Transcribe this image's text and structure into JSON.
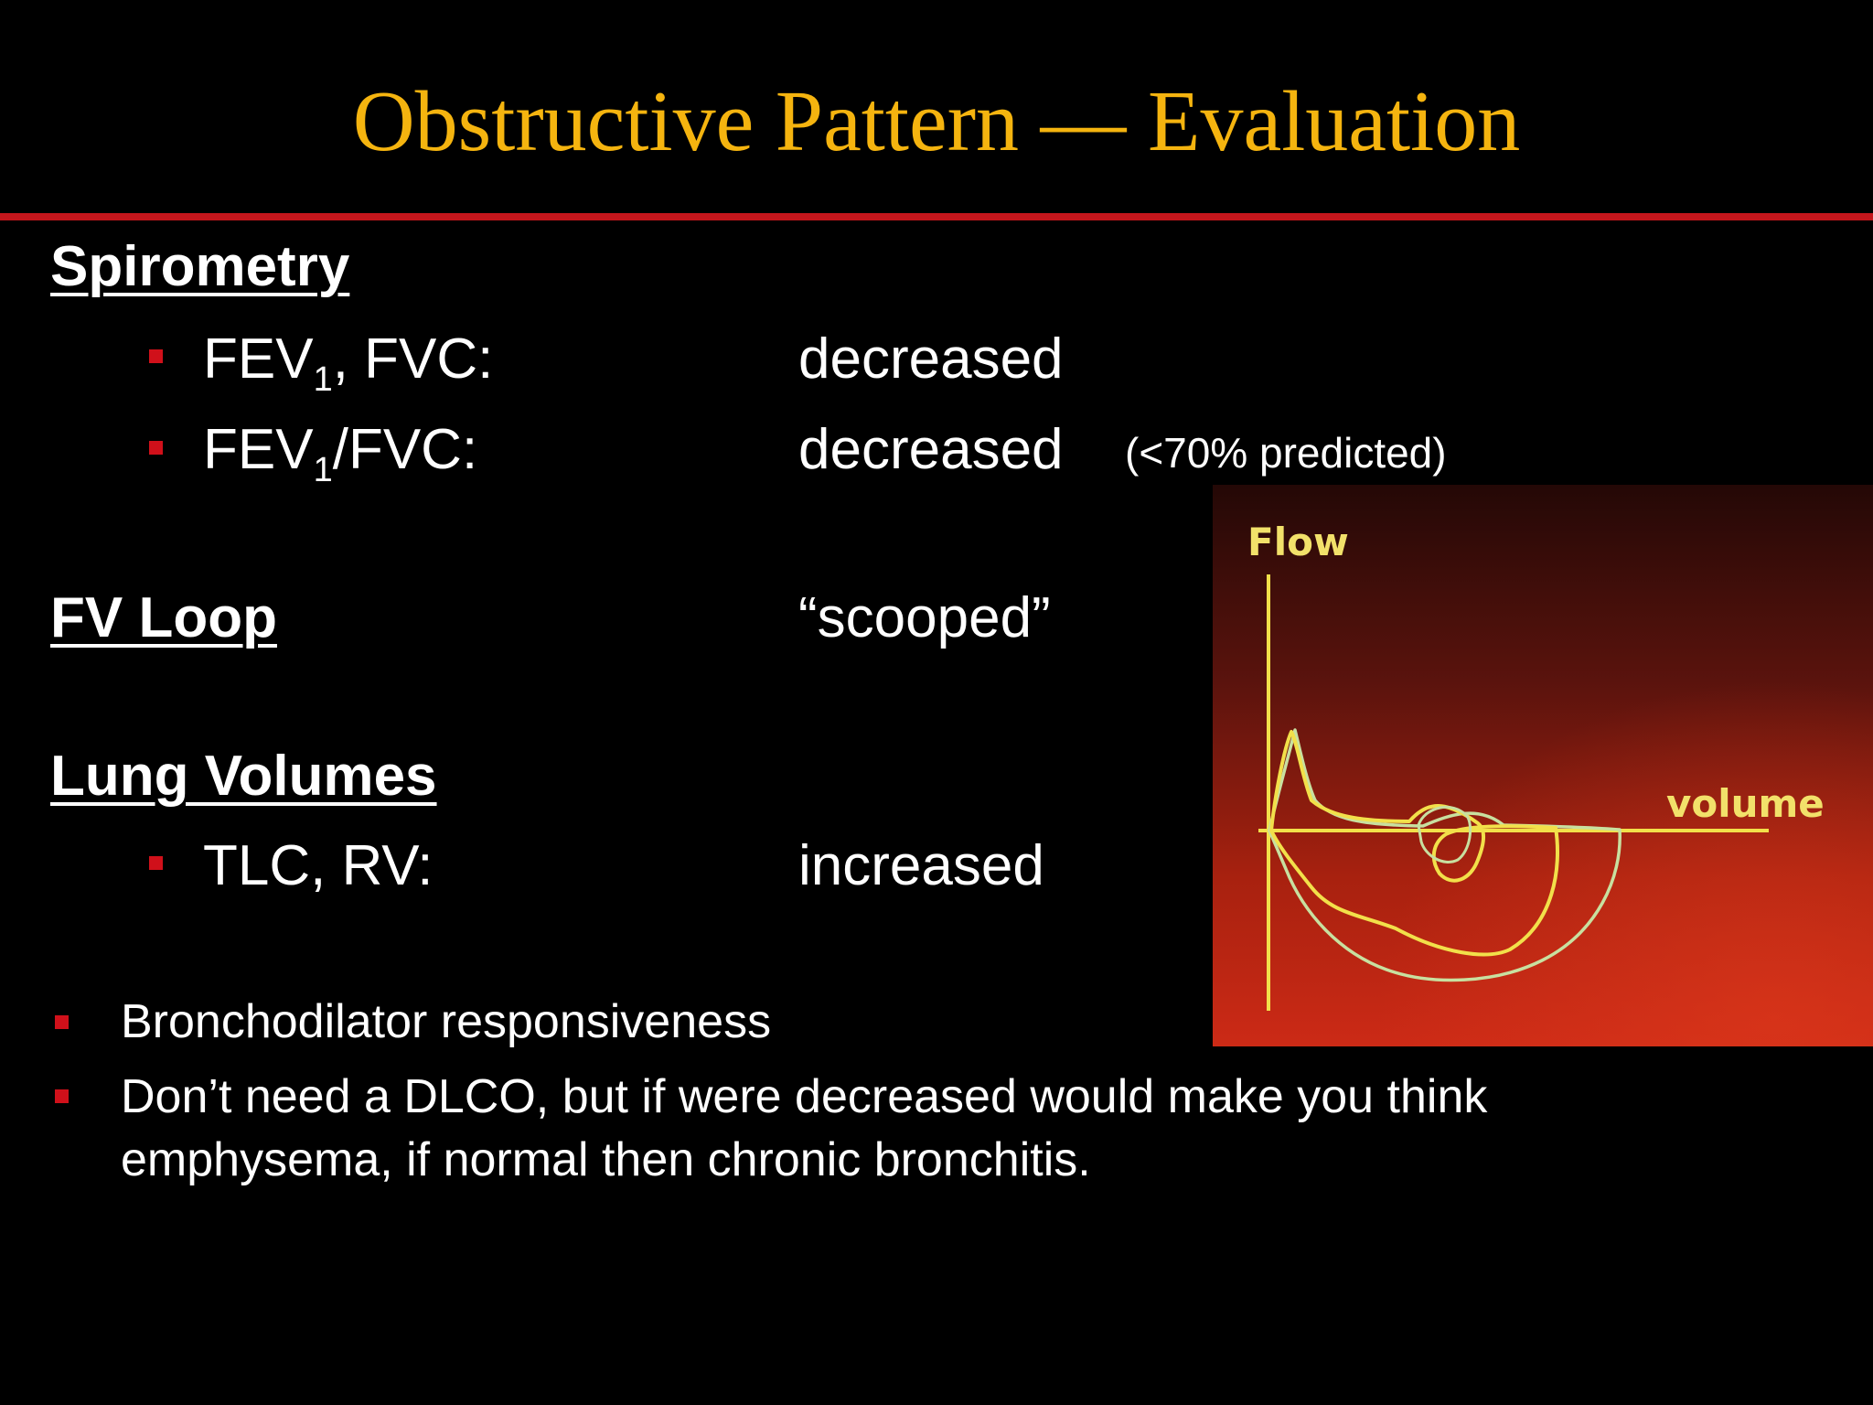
{
  "slide": {
    "title": "Obstructive Pattern — Evaluation"
  },
  "spirometry": {
    "heading": "Spirometry",
    "items": [
      {
        "label_main": "FEV",
        "label_sub": "1",
        "label_rest": ", FVC:",
        "value": "decreased",
        "note": ""
      },
      {
        "label_main": "FEV",
        "label_sub": "1",
        "label_rest": "/FVC:",
        "value": "decreased",
        "note": "(<70% predicted)"
      }
    ]
  },
  "fv_loop": {
    "heading": "FV Loop",
    "value": "“scooped”"
  },
  "lung_volumes": {
    "heading": "Lung Volumes",
    "items": [
      {
        "label": "TLC, RV:",
        "value": "increased"
      }
    ]
  },
  "bottom_bullets": [
    {
      "lines": [
        "Bronchodilator responsiveness"
      ]
    },
    {
      "lines": [
        "Don’t need a DLCO, but if were decreased would make you think",
        "emphysema, if normal then chronic bronchitis."
      ]
    }
  ],
  "figure": {
    "y_axis_label": "Flow",
    "x_axis_label": "volume"
  },
  "colors": {
    "background": "#000000",
    "title": "#f5b40f",
    "rule": "#c4161c",
    "bullet": "#d0101a",
    "curve_yellow": "#f2e04a",
    "curve_pale": "#c8e0a0"
  }
}
